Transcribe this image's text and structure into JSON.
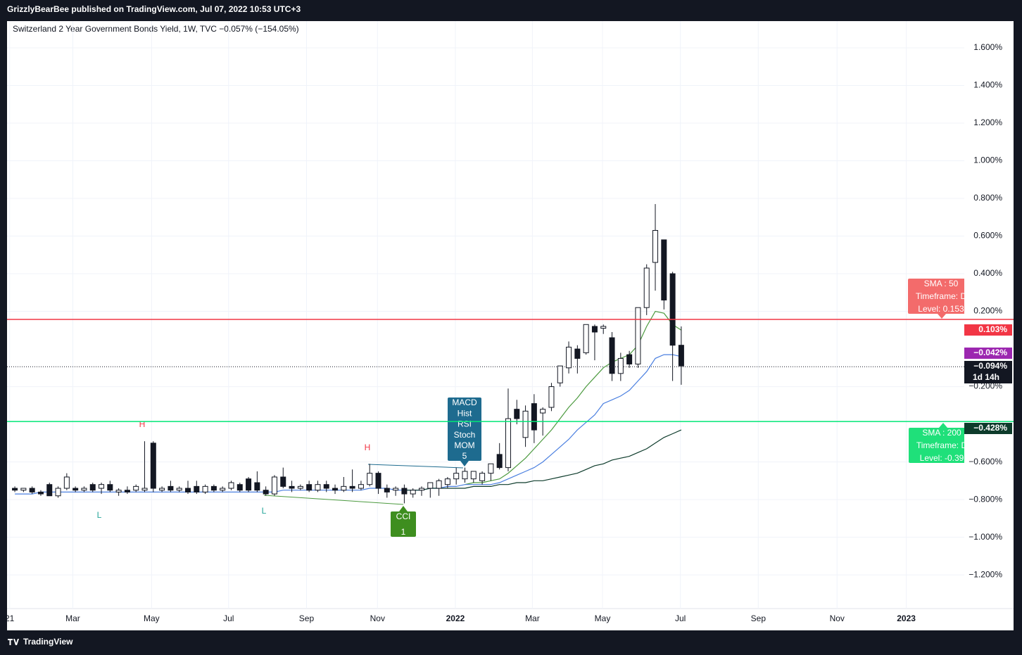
{
  "header": "GrizzlyBearBee published on TradingView.com, Jul 07, 2022 10:53 UTC+3",
  "footer": "TradingView",
  "chart_data": {
    "type": "candlestick",
    "title": "Switzerland 2 Year Government Bonds Yield, 1W, TVC  −0.057% (−154.05%)",
    "up_color": "#ffffff",
    "down_color": "#131722",
    "border_color": "#131722",
    "open": [
      -0.74,
      -0.75,
      -0.74,
      -0.76,
      -0.72,
      -0.78,
      -0.74,
      -0.74,
      -0.75,
      -0.72,
      -0.74,
      -0.72,
      -0.76,
      -0.75,
      -0.75,
      -0.75,
      -0.5,
      -0.75,
      -0.73,
      -0.75,
      -0.74,
      -0.73,
      -0.76,
      -0.73,
      -0.75,
      -0.74,
      -0.72,
      -0.69,
      -0.71,
      -0.75,
      -0.77,
      -0.68,
      -0.73,
      -0.74,
      -0.72,
      -0.75,
      -0.72,
      -0.74,
      -0.75,
      -0.73,
      -0.74,
      -0.72,
      -0.66,
      -0.74,
      -0.75,
      -0.74,
      -0.77,
      -0.75,
      -0.74,
      -0.74,
      -0.72,
      -0.69,
      -0.69,
      -0.69,
      -0.7,
      -0.66,
      -0.56,
      -0.63,
      -0.32,
      -0.47,
      -0.29,
      -0.34,
      -0.31,
      -0.18,
      -0.1,
      0.0,
      -0.02,
      0.12,
      0.11,
      0.06,
      -0.13,
      -0.03,
      -0.08,
      0.22,
      0.46,
      0.58,
      0.4,
      0.02
    ],
    "high": [
      -0.73,
      -0.74,
      -0.73,
      -0.75,
      -0.71,
      -0.73,
      -0.66,
      -0.73,
      -0.73,
      -0.71,
      -0.71,
      -0.7,
      -0.74,
      -0.73,
      -0.72,
      -0.49,
      -0.49,
      -0.73,
      -0.7,
      -0.73,
      -0.7,
      -0.7,
      -0.72,
      -0.72,
      -0.73,
      -0.7,
      -0.71,
      -0.68,
      -0.65,
      -0.73,
      -0.67,
      -0.63,
      -0.7,
      -0.72,
      -0.7,
      -0.7,
      -0.7,
      -0.72,
      -0.68,
      -0.64,
      -0.7,
      -0.61,
      -0.65,
      -0.72,
      -0.73,
      -0.72,
      -0.74,
      -0.73,
      -0.71,
      -0.69,
      -0.68,
      -0.63,
      -0.63,
      -0.65,
      -0.65,
      -0.61,
      -0.5,
      -0.21,
      -0.27,
      -0.3,
      -0.24,
      -0.31,
      -0.18,
      -0.09,
      0.04,
      0.02,
      0.13,
      0.13,
      0.13,
      0.09,
      -0.02,
      -0.01,
      0.22,
      0.45,
      0.77,
      0.58,
      0.41,
      0.12
    ],
    "low": [
      -0.76,
      -0.76,
      -0.77,
      -0.78,
      -0.78,
      -0.79,
      -0.75,
      -0.76,
      -0.76,
      -0.76,
      -0.77,
      -0.76,
      -0.78,
      -0.77,
      -0.76,
      -0.76,
      -0.76,
      -0.76,
      -0.76,
      -0.76,
      -0.77,
      -0.77,
      -0.77,
      -0.76,
      -0.76,
      -0.75,
      -0.76,
      -0.76,
      -0.76,
      -0.78,
      -0.78,
      -0.74,
      -0.76,
      -0.75,
      -0.76,
      -0.76,
      -0.76,
      -0.77,
      -0.76,
      -0.76,
      -0.75,
      -0.73,
      -0.77,
      -0.79,
      -0.78,
      -0.82,
      -0.79,
      -0.78,
      -0.79,
      -0.78,
      -0.74,
      -0.72,
      -0.71,
      -0.71,
      -0.72,
      -0.7,
      -0.64,
      -0.65,
      -0.4,
      -0.52,
      -0.5,
      -0.46,
      -0.33,
      -0.2,
      -0.13,
      -0.13,
      -0.03,
      -0.06,
      0.08,
      -0.17,
      -0.17,
      -0.1,
      -0.1,
      0.18,
      0.31,
      0.21,
      -0.17,
      -0.19
    ],
    "close": [
      -0.75,
      -0.74,
      -0.76,
      -0.77,
      -0.78,
      -0.74,
      -0.68,
      -0.75,
      -0.74,
      -0.75,
      -0.72,
      -0.75,
      -0.75,
      -0.76,
      -0.73,
      -0.74,
      -0.74,
      -0.74,
      -0.75,
      -0.74,
      -0.76,
      -0.76,
      -0.73,
      -0.75,
      -0.74,
      -0.71,
      -0.75,
      -0.75,
      -0.75,
      -0.77,
      -0.68,
      -0.73,
      -0.74,
      -0.73,
      -0.75,
      -0.72,
      -0.74,
      -0.75,
      -0.73,
      -0.74,
      -0.72,
      -0.66,
      -0.74,
      -0.76,
      -0.74,
      -0.77,
      -0.75,
      -0.74,
      -0.71,
      -0.7,
      -0.69,
      -0.66,
      -0.65,
      -0.65,
      -0.66,
      -0.61,
      -0.63,
      -0.37,
      -0.37,
      -0.33,
      -0.43,
      -0.32,
      -0.2,
      -0.09,
      0.01,
      -0.05,
      0.13,
      0.09,
      0.12,
      -0.13,
      -0.05,
      -0.08,
      0.22,
      0.43,
      0.63,
      0.26,
      0.02,
      -0.09
    ],
    "series": [
      {
        "color": "#4c9a3f",
        "values": [
          null,
          null,
          null,
          null,
          null,
          null,
          null,
          null,
          null,
          null,
          null,
          null,
          null,
          null,
          null,
          null,
          null,
          null,
          null,
          null,
          null,
          null,
          null,
          null,
          null,
          null,
          null,
          null,
          null,
          null,
          null,
          null,
          null,
          null,
          null,
          null,
          null,
          null,
          null,
          null,
          null,
          null,
          null,
          null,
          null,
          null,
          null,
          null,
          null,
          null,
          null,
          null,
          -0.72,
          -0.71,
          -0.71,
          -0.7,
          -0.69,
          -0.66,
          -0.62,
          -0.58,
          -0.53,
          -0.48,
          -0.43,
          -0.37,
          -0.31,
          -0.26,
          -0.2,
          -0.15,
          -0.1,
          -0.07,
          -0.05,
          -0.03,
          0.02,
          0.12,
          0.2,
          0.19,
          0.13,
          0.1
        ]
      },
      {
        "color": "#4a7fe0",
        "values": [
          -0.77,
          -0.77,
          -0.77,
          -0.76,
          -0.76,
          -0.76,
          -0.76,
          -0.76,
          -0.76,
          -0.76,
          -0.76,
          -0.76,
          -0.76,
          -0.76,
          -0.76,
          -0.76,
          -0.76,
          -0.76,
          -0.76,
          -0.76,
          -0.76,
          -0.76,
          -0.76,
          -0.76,
          -0.76,
          -0.76,
          -0.76,
          -0.76,
          -0.76,
          -0.76,
          -0.76,
          -0.75,
          -0.75,
          -0.75,
          -0.75,
          -0.75,
          -0.75,
          -0.75,
          -0.75,
          -0.75,
          -0.75,
          -0.74,
          -0.74,
          -0.74,
          -0.75,
          -0.75,
          -0.75,
          -0.75,
          -0.74,
          -0.74,
          -0.73,
          -0.73,
          -0.72,
          -0.72,
          -0.72,
          -0.72,
          -0.71,
          -0.69,
          -0.67,
          -0.65,
          -0.63,
          -0.6,
          -0.56,
          -0.52,
          -0.48,
          -0.43,
          -0.39,
          -0.35,
          -0.29,
          -0.27,
          -0.25,
          -0.22,
          -0.17,
          -0.12,
          -0.05,
          -0.03,
          -0.03,
          -0.04
        ]
      },
      {
        "color": "#0d3b2b",
        "values": [
          null,
          null,
          null,
          null,
          null,
          null,
          null,
          null,
          null,
          null,
          null,
          null,
          null,
          null,
          null,
          null,
          null,
          null,
          null,
          null,
          null,
          null,
          null,
          null,
          null,
          null,
          null,
          null,
          null,
          null,
          null,
          null,
          null,
          null,
          null,
          null,
          null,
          null,
          null,
          null,
          null,
          null,
          null,
          null,
          null,
          -0.75,
          -0.75,
          -0.75,
          -0.74,
          -0.74,
          -0.74,
          -0.74,
          -0.74,
          -0.73,
          -0.73,
          -0.73,
          -0.72,
          -0.72,
          -0.71,
          -0.71,
          -0.7,
          -0.7,
          -0.69,
          -0.68,
          -0.67,
          -0.66,
          -0.64,
          -0.62,
          -0.61,
          -0.59,
          -0.58,
          -0.57,
          -0.55,
          -0.53,
          -0.5,
          -0.47,
          -0.45,
          -0.43
        ]
      }
    ],
    "levels": [
      {
        "value": 0.157,
        "color": "#f23645",
        "style": "solid"
      },
      {
        "value": -0.385,
        "color": "#00e676",
        "style": "solid"
      },
      {
        "value": -0.094,
        "color": "#131722",
        "style": "dotted"
      }
    ],
    "price_tags": [
      {
        "text": "0.103%",
        "color": "#f23645"
      },
      {
        "text": "−0.042%",
        "color": "#9c27b0"
      },
      {
        "text": "−0.094%",
        "color": "#131722"
      },
      {
        "text": "1d 14h",
        "color": "#131722"
      },
      {
        "text": "−0.428%",
        "color": "#0d3b2b"
      }
    ],
    "markers": [
      "H",
      "L",
      "L",
      "H"
    ],
    "bear_box": [
      "MACD",
      "Hist",
      "RSI",
      "Stoch",
      "MOM",
      "5"
    ],
    "bull_box": [
      "CCI",
      "1"
    ],
    "sma50_box": [
      "SMA : 50",
      "Timeframe: D",
      "Level: 0.153"
    ],
    "sma200_box": [
      "SMA : 200",
      "Timeframe: D",
      "Level: -0.39"
    ],
    "grid": true,
    "ylim": [
      -1.379,
      1.742
    ],
    "yticks": [
      {
        "value": 1.6,
        "label": "1.600%"
      },
      {
        "value": 1.4,
        "label": "1.400%"
      },
      {
        "value": 1.2,
        "label": "1.200%"
      },
      {
        "value": 1.0,
        "label": "1.000%"
      },
      {
        "value": 0.8,
        "label": "0.800%"
      },
      {
        "value": 0.6,
        "label": "0.600%"
      },
      {
        "value": 0.4,
        "label": "0.400%"
      },
      {
        "value": 0.2,
        "label": "0.200%"
      },
      {
        "value": -0.2,
        "label": "−0.200%"
      },
      {
        "value": -0.6,
        "label": "−0.600%"
      },
      {
        "value": -0.8,
        "label": "−0.800%"
      },
      {
        "value": -1.0,
        "label": "−1.000%"
      },
      {
        "value": -1.2,
        "label": "−1.200%"
      }
    ],
    "xlim": [
      -0.9,
      109.7
    ],
    "xticks": [
      {
        "value": -0.6,
        "label": "21"
      },
      {
        "value": 6.7,
        "label": "Mar"
      },
      {
        "value": 15.8,
        "label": "May"
      },
      {
        "value": 24.7,
        "label": "Jul"
      },
      {
        "value": 33.7,
        "label": "Sep"
      },
      {
        "value": 41.9,
        "label": "Nov"
      },
      {
        "value": 50.9,
        "label": "2022"
      },
      {
        "value": 59.8,
        "label": "Mar"
      },
      {
        "value": 67.9,
        "label": "May"
      },
      {
        "value": 76.9,
        "label": "Jul"
      },
      {
        "value": 85.9,
        "label": "Sep"
      },
      {
        "value": 95.0,
        "label": "Nov"
      },
      {
        "value": 103.0,
        "label": "2023"
      }
    ]
  }
}
